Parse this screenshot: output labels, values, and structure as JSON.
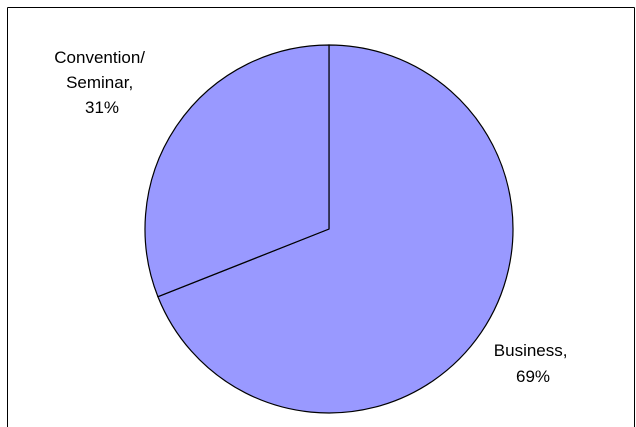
{
  "chart_data": {
    "type": "pie",
    "title": "",
    "slices": [
      {
        "label": "Business",
        "value": 69,
        "display_value": "69%",
        "color": "#9999ff"
      },
      {
        "label": "Convention/ Seminar",
        "value": 31,
        "display_value": "31%",
        "color": "#9999ff"
      }
    ],
    "start_angle_deg": 0,
    "direction": "clockwise",
    "legend": "none",
    "data_labels": "outside"
  },
  "labels": {
    "business_line1": "Business,",
    "business_line2": "69%",
    "convention_line1": "Convention/",
    "convention_line2": "Seminar,",
    "convention_line3": "31%"
  },
  "colors": {
    "frame_border": "#000000",
    "background": "#ffffff"
  }
}
